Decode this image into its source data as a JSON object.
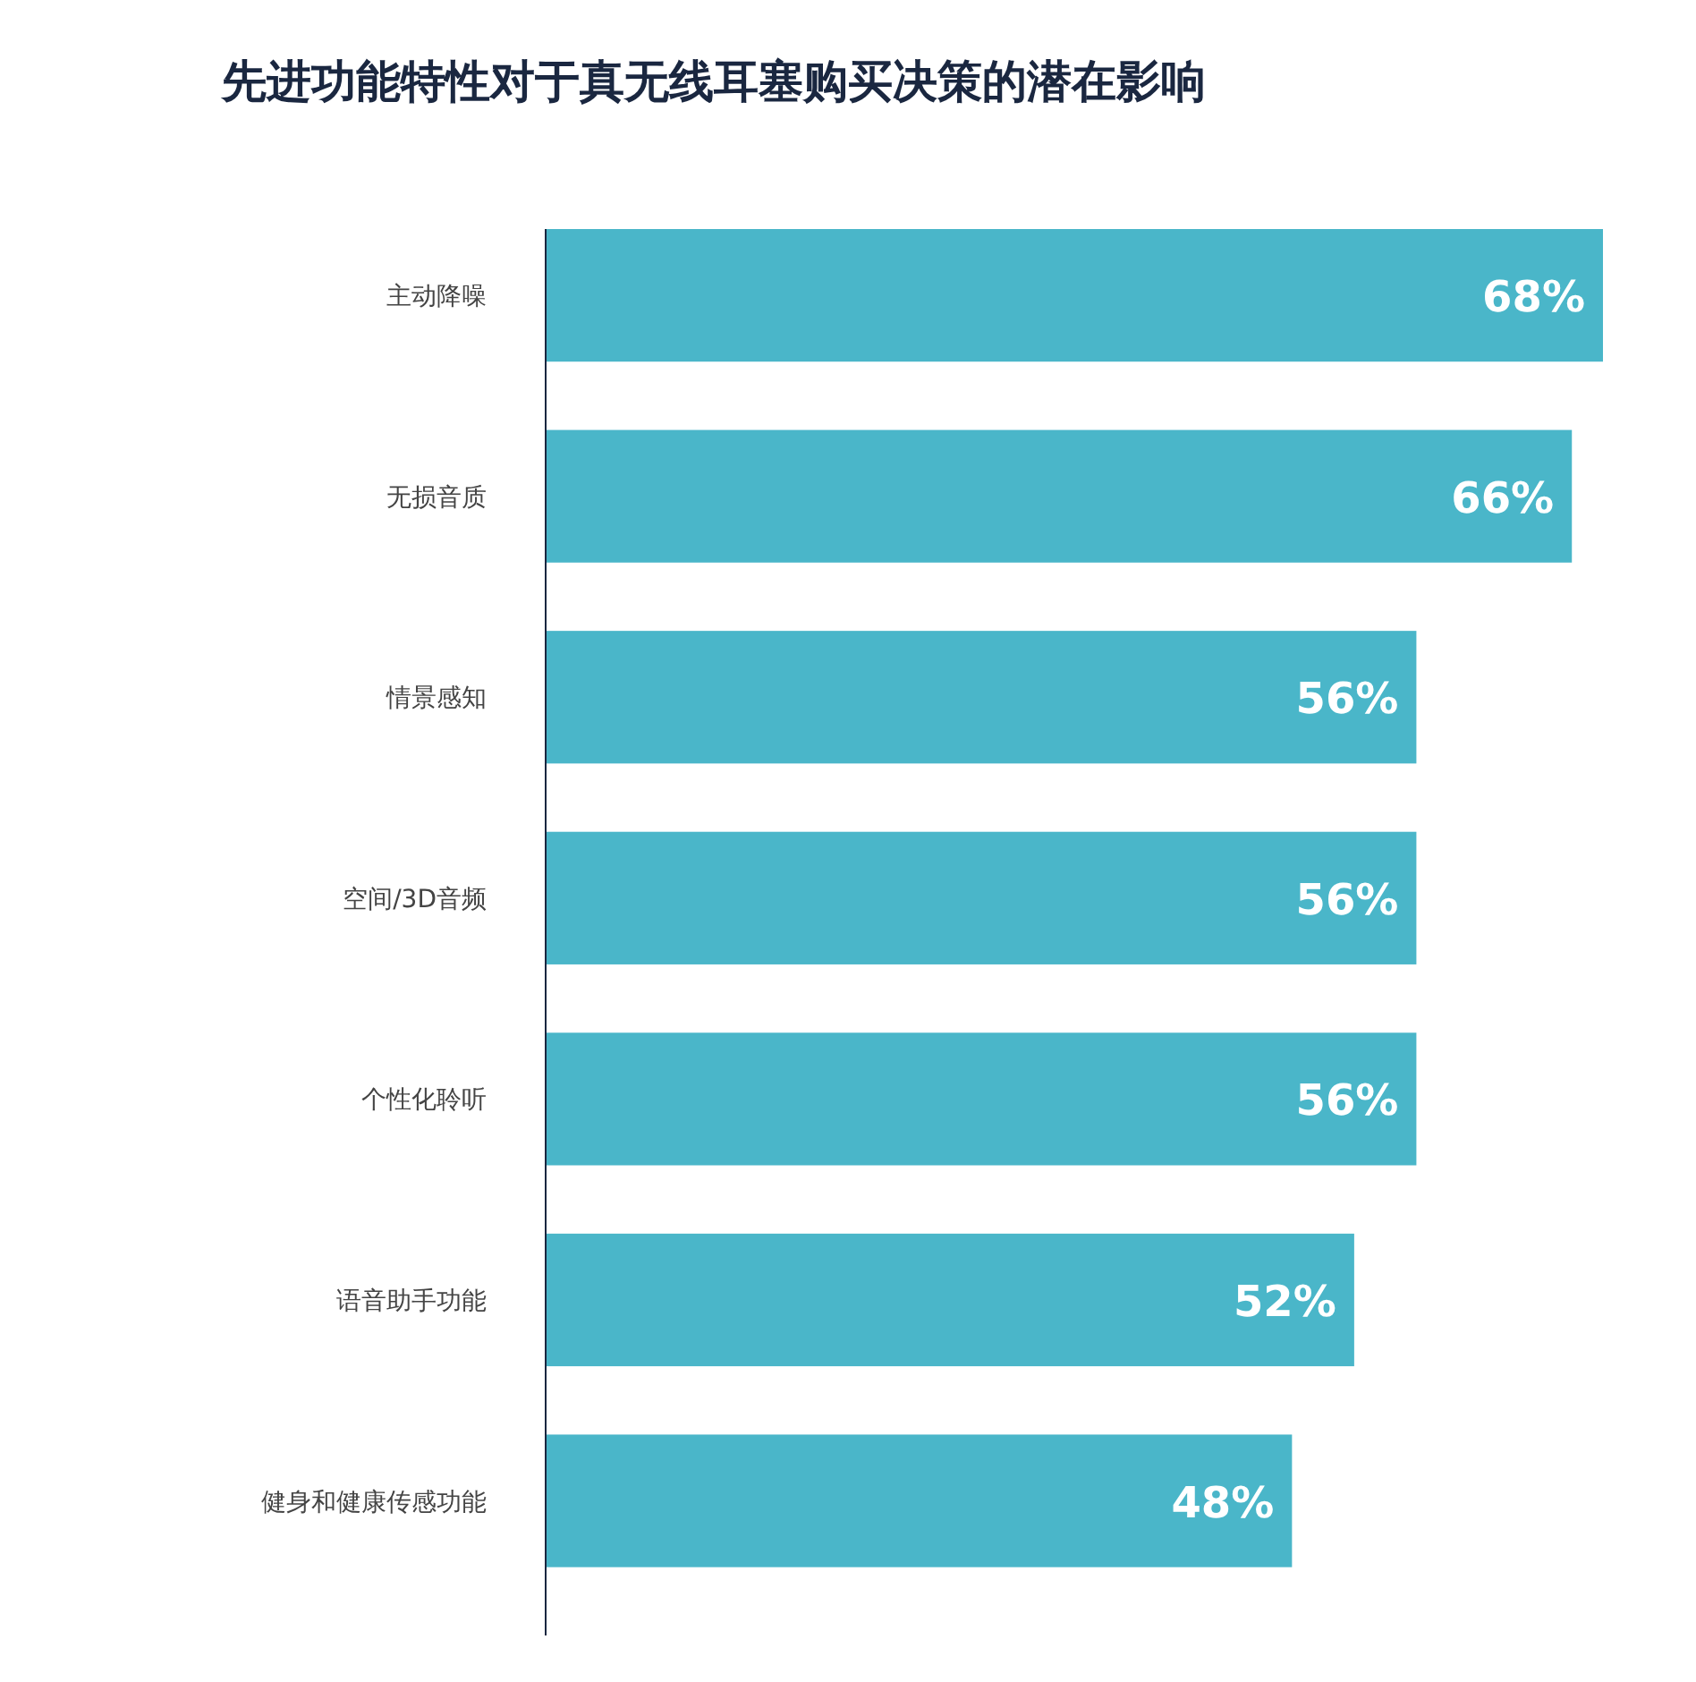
{
  "chart_data": {
    "type": "bar",
    "orientation": "horizontal",
    "title": "先进功能特性对于真无线耳塞购买决策的潜在影响",
    "categories": [
      "主动降噪",
      "无损音质",
      "情景感知",
      "空间/3D音频",
      "个性化聆听",
      "语音助手功能",
      "健身和健康传感功能"
    ],
    "values": [
      68,
      66,
      56,
      56,
      56,
      52,
      48
    ],
    "value_labels": [
      "68%",
      "66%",
      "56%",
      "56%",
      "56%",
      "52%",
      "48%"
    ],
    "color": "#4ab6c9"
  }
}
